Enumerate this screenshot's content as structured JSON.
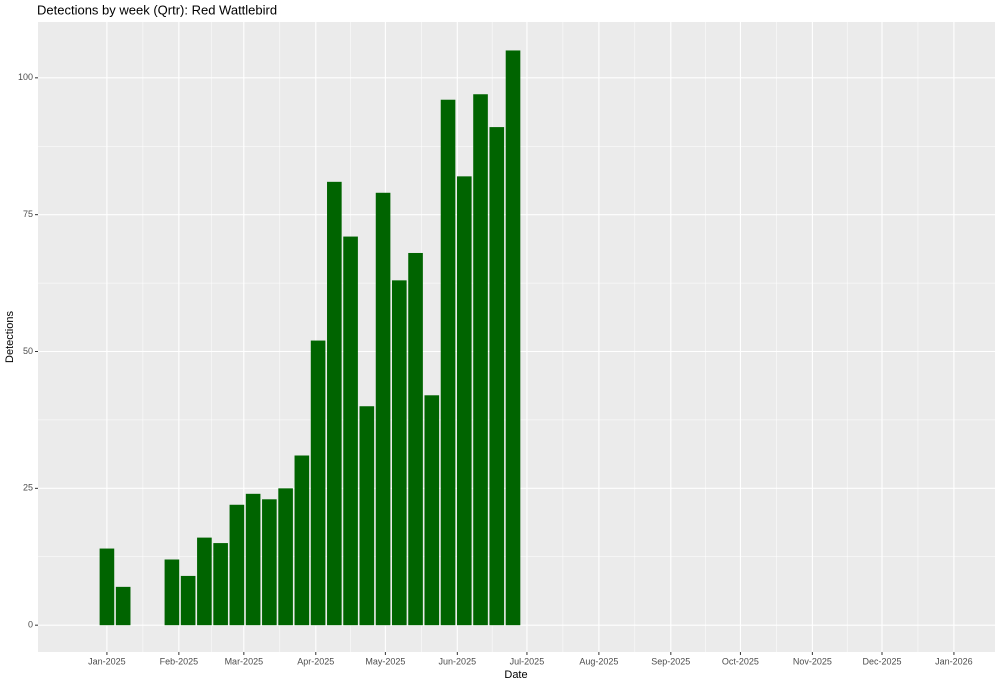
{
  "chart_data": {
    "type": "bar",
    "title": "Detections by week (Qrtr): Red Wattlebird",
    "x_label": "Date",
    "y_label": "Detections",
    "x": [
      0,
      7,
      28,
      35,
      42,
      49,
      56,
      63,
      70,
      77,
      84,
      91,
      98,
      105,
      112,
      119,
      126,
      133,
      140,
      147,
      154,
      161,
      168,
      175
    ],
    "values": [
      14,
      7,
      12,
      9,
      16,
      15,
      22,
      24,
      23,
      25,
      31,
      52,
      81,
      71,
      40,
      79,
      63,
      68,
      42,
      96,
      82,
      97,
      91,
      105
    ],
    "color": "#006400",
    "xlim": [
      -29.7,
      382.7
    ],
    "xticks": [
      {
        "value": 0,
        "label": "Jan-2025"
      },
      {
        "value": 31,
        "label": "Feb-2025"
      },
      {
        "value": 59,
        "label": "Mar-2025"
      },
      {
        "value": 90,
        "label": "Apr-2025"
      },
      {
        "value": 120,
        "label": "May-2025"
      },
      {
        "value": 151,
        "label": "Jun-2025"
      },
      {
        "value": 181,
        "label": "Jul-2025"
      },
      {
        "value": 212,
        "label": "Aug-2025"
      },
      {
        "value": 243,
        "label": "Sep-2025"
      },
      {
        "value": 273,
        "label": "Oct-2025"
      },
      {
        "value": 304,
        "label": "Nov-2025"
      },
      {
        "value": 334,
        "label": "Dec-2025"
      },
      {
        "value": 365,
        "label": "Jan-2026"
      }
    ],
    "ylim": [
      -4.9,
      110.2
    ],
    "yticks": [
      0,
      25,
      50,
      75,
      100
    ],
    "grid": true
  }
}
